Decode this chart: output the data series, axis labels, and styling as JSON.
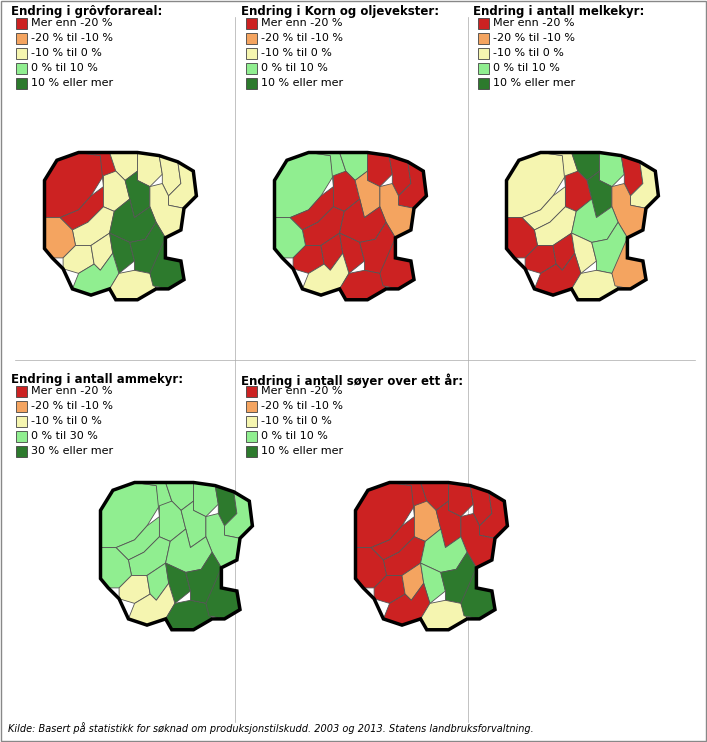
{
  "titles": [
    "Endring i grôvforareal:",
    "Endring i Korn og oljevekster:",
    "Endring i antall melkekyr:",
    "Endring i antall ammekyr:",
    "Endring i antall søyer over ett år:"
  ],
  "legend_labels_standard": [
    "Mer enn -20 %",
    "-20 % til -10 %",
    "-10 % til 0 %",
    "0 % til 10 %",
    "10 % eller mer"
  ],
  "legend_labels_ammekyr": [
    "Mer enn -20 %",
    "-20 % til -10 %",
    "-10 % til 0 %",
    "0 % til 30 %",
    "30 % eller mer"
  ],
  "colors": [
    "#cc2222",
    "#f4a460",
    "#f5f5b0",
    "#90ee90",
    "#2d7a2d"
  ],
  "footnote": "Kilde: Basert på statistikk for søknad om produksjonstilskudd. 2003 og 2013. Statens landbruksforvaltning.",
  "bg_color": "#ffffff"
}
